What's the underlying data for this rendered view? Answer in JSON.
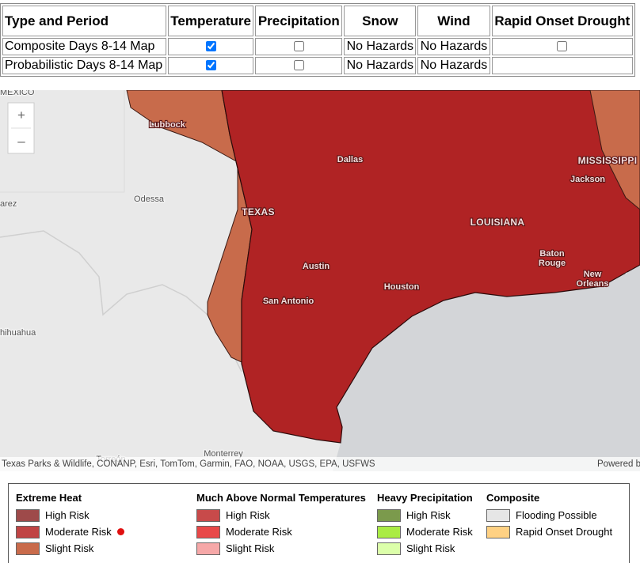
{
  "table": {
    "headers": [
      "Type and Period",
      "Temperature",
      "Precipitation",
      "Snow",
      "Wind",
      "Rapid Onset Drought"
    ],
    "rows": [
      [
        "Composite Days 8-14 Map",
        true,
        false,
        "No Hazards",
        "No Hazards",
        false
      ],
      [
        "Probabilistic Days 8-14 Map",
        true,
        false,
        "No Hazards",
        "No Hazards",
        null
      ]
    ]
  },
  "map": {
    "zoom": [
      "+",
      "–"
    ],
    "labels": [
      "MEXICO",
      "Lubbock",
      "Dallas",
      "MISSISSIPPI",
      "Jackson",
      "Odessa",
      "arez",
      "TEXAS",
      "LOUISIANA",
      "Austin",
      "Baton",
      "Rouge",
      "New",
      "Orleans",
      "Houston",
      "San Antonio",
      "hihuahua",
      "Monterrey",
      "Torreón"
    ],
    "attribution": "Texas Parks & Wildlife, CONANP, Esri, TomTom, Garmin, FAO, NOAA, USGS, EPA, USFWS",
    "powered_by": "Powered b"
  },
  "legend": [
    {
      "title": "Extreme Heat",
      "items": [
        "High Risk",
        "Moderate Risk",
        "Slight Risk"
      ]
    },
    {
      "title": "Much Above Normal Temperatures",
      "items": [
        "High Risk",
        "Moderate Risk",
        "Slight Risk"
      ]
    },
    {
      "title": "Heavy Precipitation",
      "items": [
        "High Risk",
        "Moderate Risk",
        "Slight Risk"
      ]
    },
    {
      "title": "Composite",
      "items": [
        "Flooding Possible",
        "Rapid Onset Drought"
      ]
    }
  ]
}
